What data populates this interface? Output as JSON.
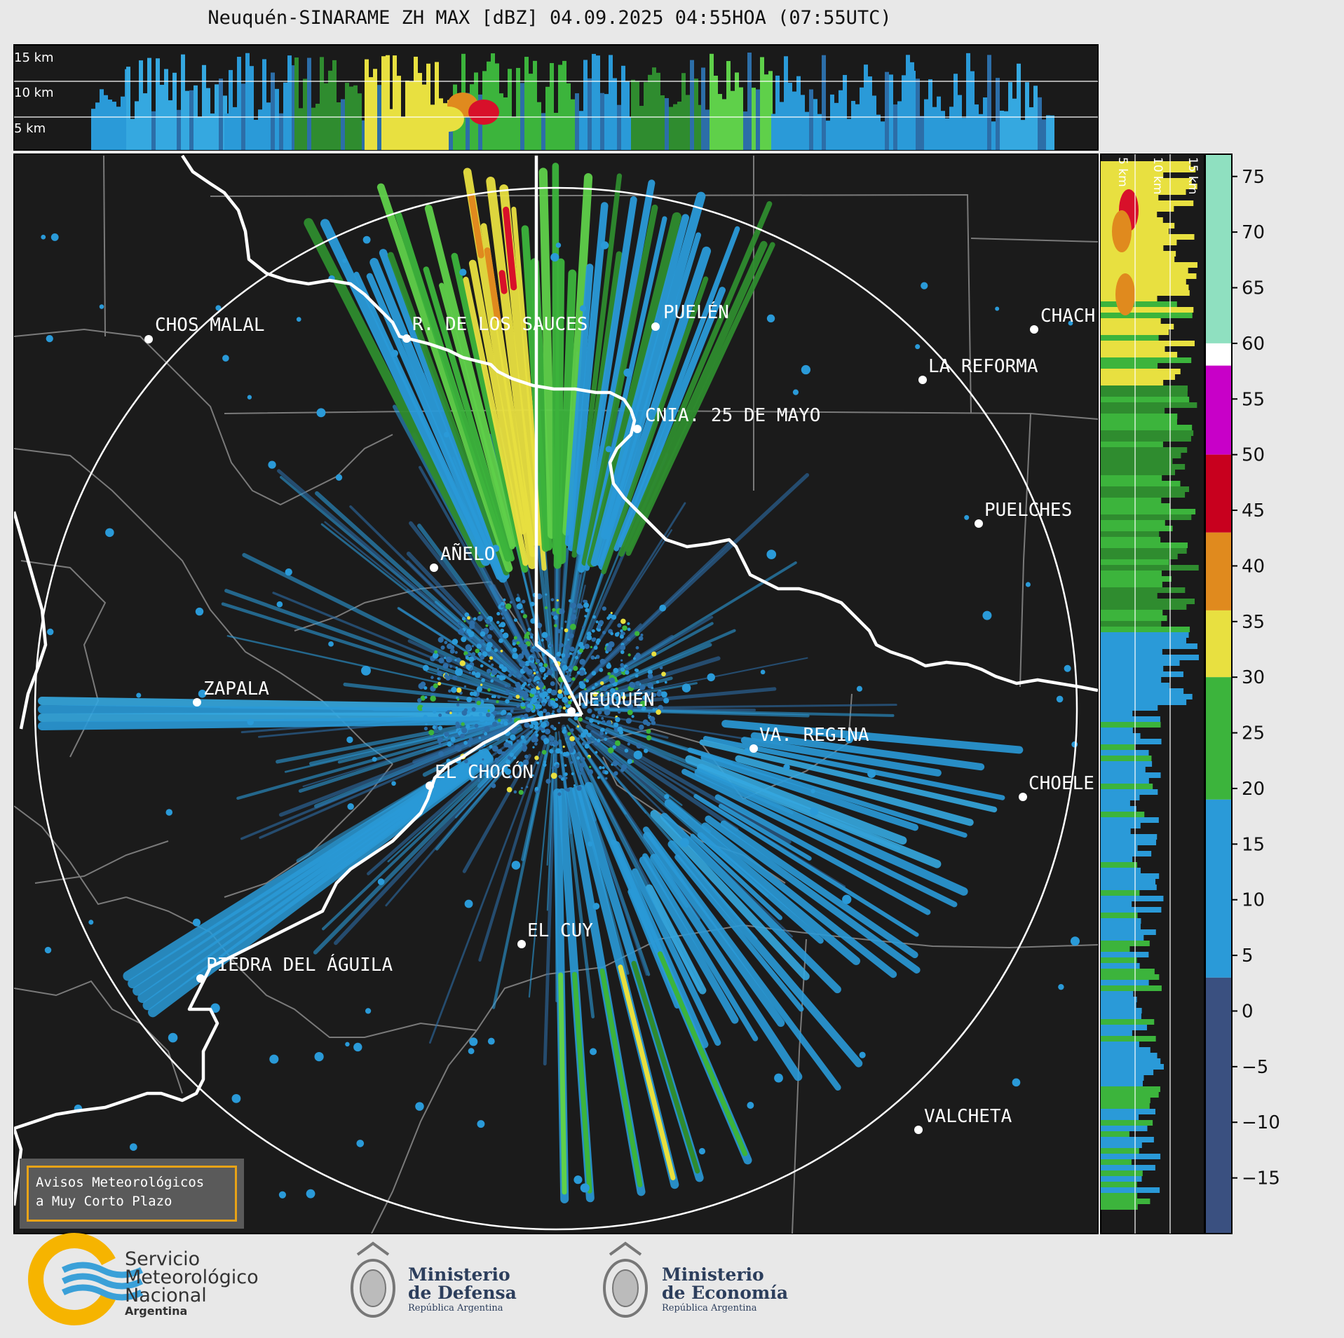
{
  "title": "Neuquén-SINARAME ZH MAX [dBZ] 04.09.2025 04:55HOA (07:55UTC)",
  "top_panel": {
    "height_labels": [
      "15 km",
      "10 km",
      "5 km"
    ]
  },
  "side_panel": {
    "height_labels": [
      "5 km",
      "10 km",
      "15 km"
    ]
  },
  "colorbar": {
    "ticks": [
      75,
      70,
      65,
      60,
      55,
      50,
      45,
      40,
      35,
      30,
      25,
      20,
      15,
      10,
      5,
      0,
      -5,
      -10,
      -15
    ],
    "tick_labels": [
      "75",
      "70",
      "65",
      "60",
      "55",
      "50",
      "45",
      "40",
      "35",
      "30",
      "25",
      "20",
      "15",
      "10",
      "5",
      "0",
      "−5",
      "−10",
      "−15"
    ],
    "range": [
      -20,
      77
    ],
    "colors": [
      {
        "from": 60,
        "to": 77,
        "color": "#8fe0c0"
      },
      {
        "from": 58,
        "to": 60,
        "color": "#ffffff"
      },
      {
        "from": 50,
        "to": 58,
        "color": "#c800c8"
      },
      {
        "from": 43,
        "to": 50,
        "color": "#c8001e"
      },
      {
        "from": 36,
        "to": 43,
        "color": "#e08a1e"
      },
      {
        "from": 30,
        "to": 36,
        "color": "#e8e040"
      },
      {
        "from": 19,
        "to": 30,
        "color": "#3cb43c"
      },
      {
        "from": 3,
        "to": 19,
        "color": "#2a9ad8"
      },
      {
        "from": -20,
        "to": 3,
        "color": "#3a5080"
      }
    ]
  },
  "cities": [
    {
      "name": "CHOS MALAL"
    },
    {
      "name": "R. DE LOS SAUCES"
    },
    {
      "name": "PUELÉN"
    },
    {
      "name": "CHACH"
    },
    {
      "name": "LA REFORMA"
    },
    {
      "name": "CNIA. 25 DE MAYO"
    },
    {
      "name": "PUELCHES"
    },
    {
      "name": "AÑELO"
    },
    {
      "name": "ZAPALA"
    },
    {
      "name": "NEUQUÉN"
    },
    {
      "name": "VA. REGINA"
    },
    {
      "name": "EL CHOCÓN"
    },
    {
      "name": "CHOELE"
    },
    {
      "name": "EL CUY"
    },
    {
      "name": "PIEDRA DEL ÁGUILA"
    },
    {
      "name": "VALCHETA"
    }
  ],
  "notice": {
    "line1": "Avisos Meteorológicos",
    "line2": "a Muy Corto Plazo"
  },
  "footer": {
    "smn": {
      "line1": "Servicio",
      "line2": "Meteorológico",
      "line3": "Nacional",
      "line4": "Argentina"
    },
    "defensa": {
      "line1": "Ministerio",
      "line2": "de Defensa",
      "line3": "República Argentina"
    },
    "economia": {
      "line1": "Ministerio",
      "line2": "de Economía",
      "line3": "República Argentina"
    }
  }
}
